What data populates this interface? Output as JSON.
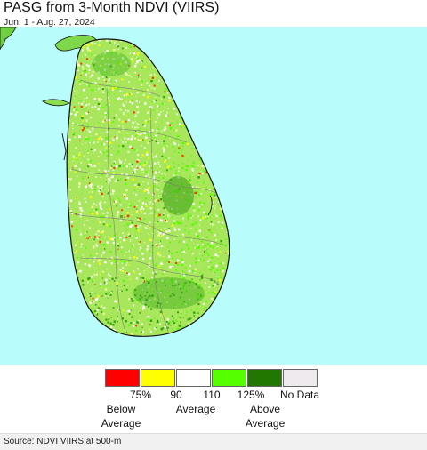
{
  "header": {
    "title": "PASG from 3-Month NDVI (VIIRS)",
    "date_range": "Jun. 1 - Aug. 27, 2024"
  },
  "map": {
    "ocean_color": "#b8fcfc",
    "land_base_color": "#a8e65c"
  },
  "legend": {
    "swatches": [
      {
        "color": "#ff0000"
      },
      {
        "color": "#ffff00"
      },
      {
        "color": "#ffffff"
      },
      {
        "color": "#55ff00"
      },
      {
        "color": "#227700"
      },
      {
        "color": "#eeeaee"
      }
    ],
    "ticks": [
      "75%",
      "90",
      "110",
      "125%",
      "No Data"
    ],
    "groups": [
      "Below",
      "Average",
      "Average",
      "Above",
      "Average"
    ]
  },
  "footer": {
    "source": "Source: NDVI VIIRS at 500-m"
  }
}
